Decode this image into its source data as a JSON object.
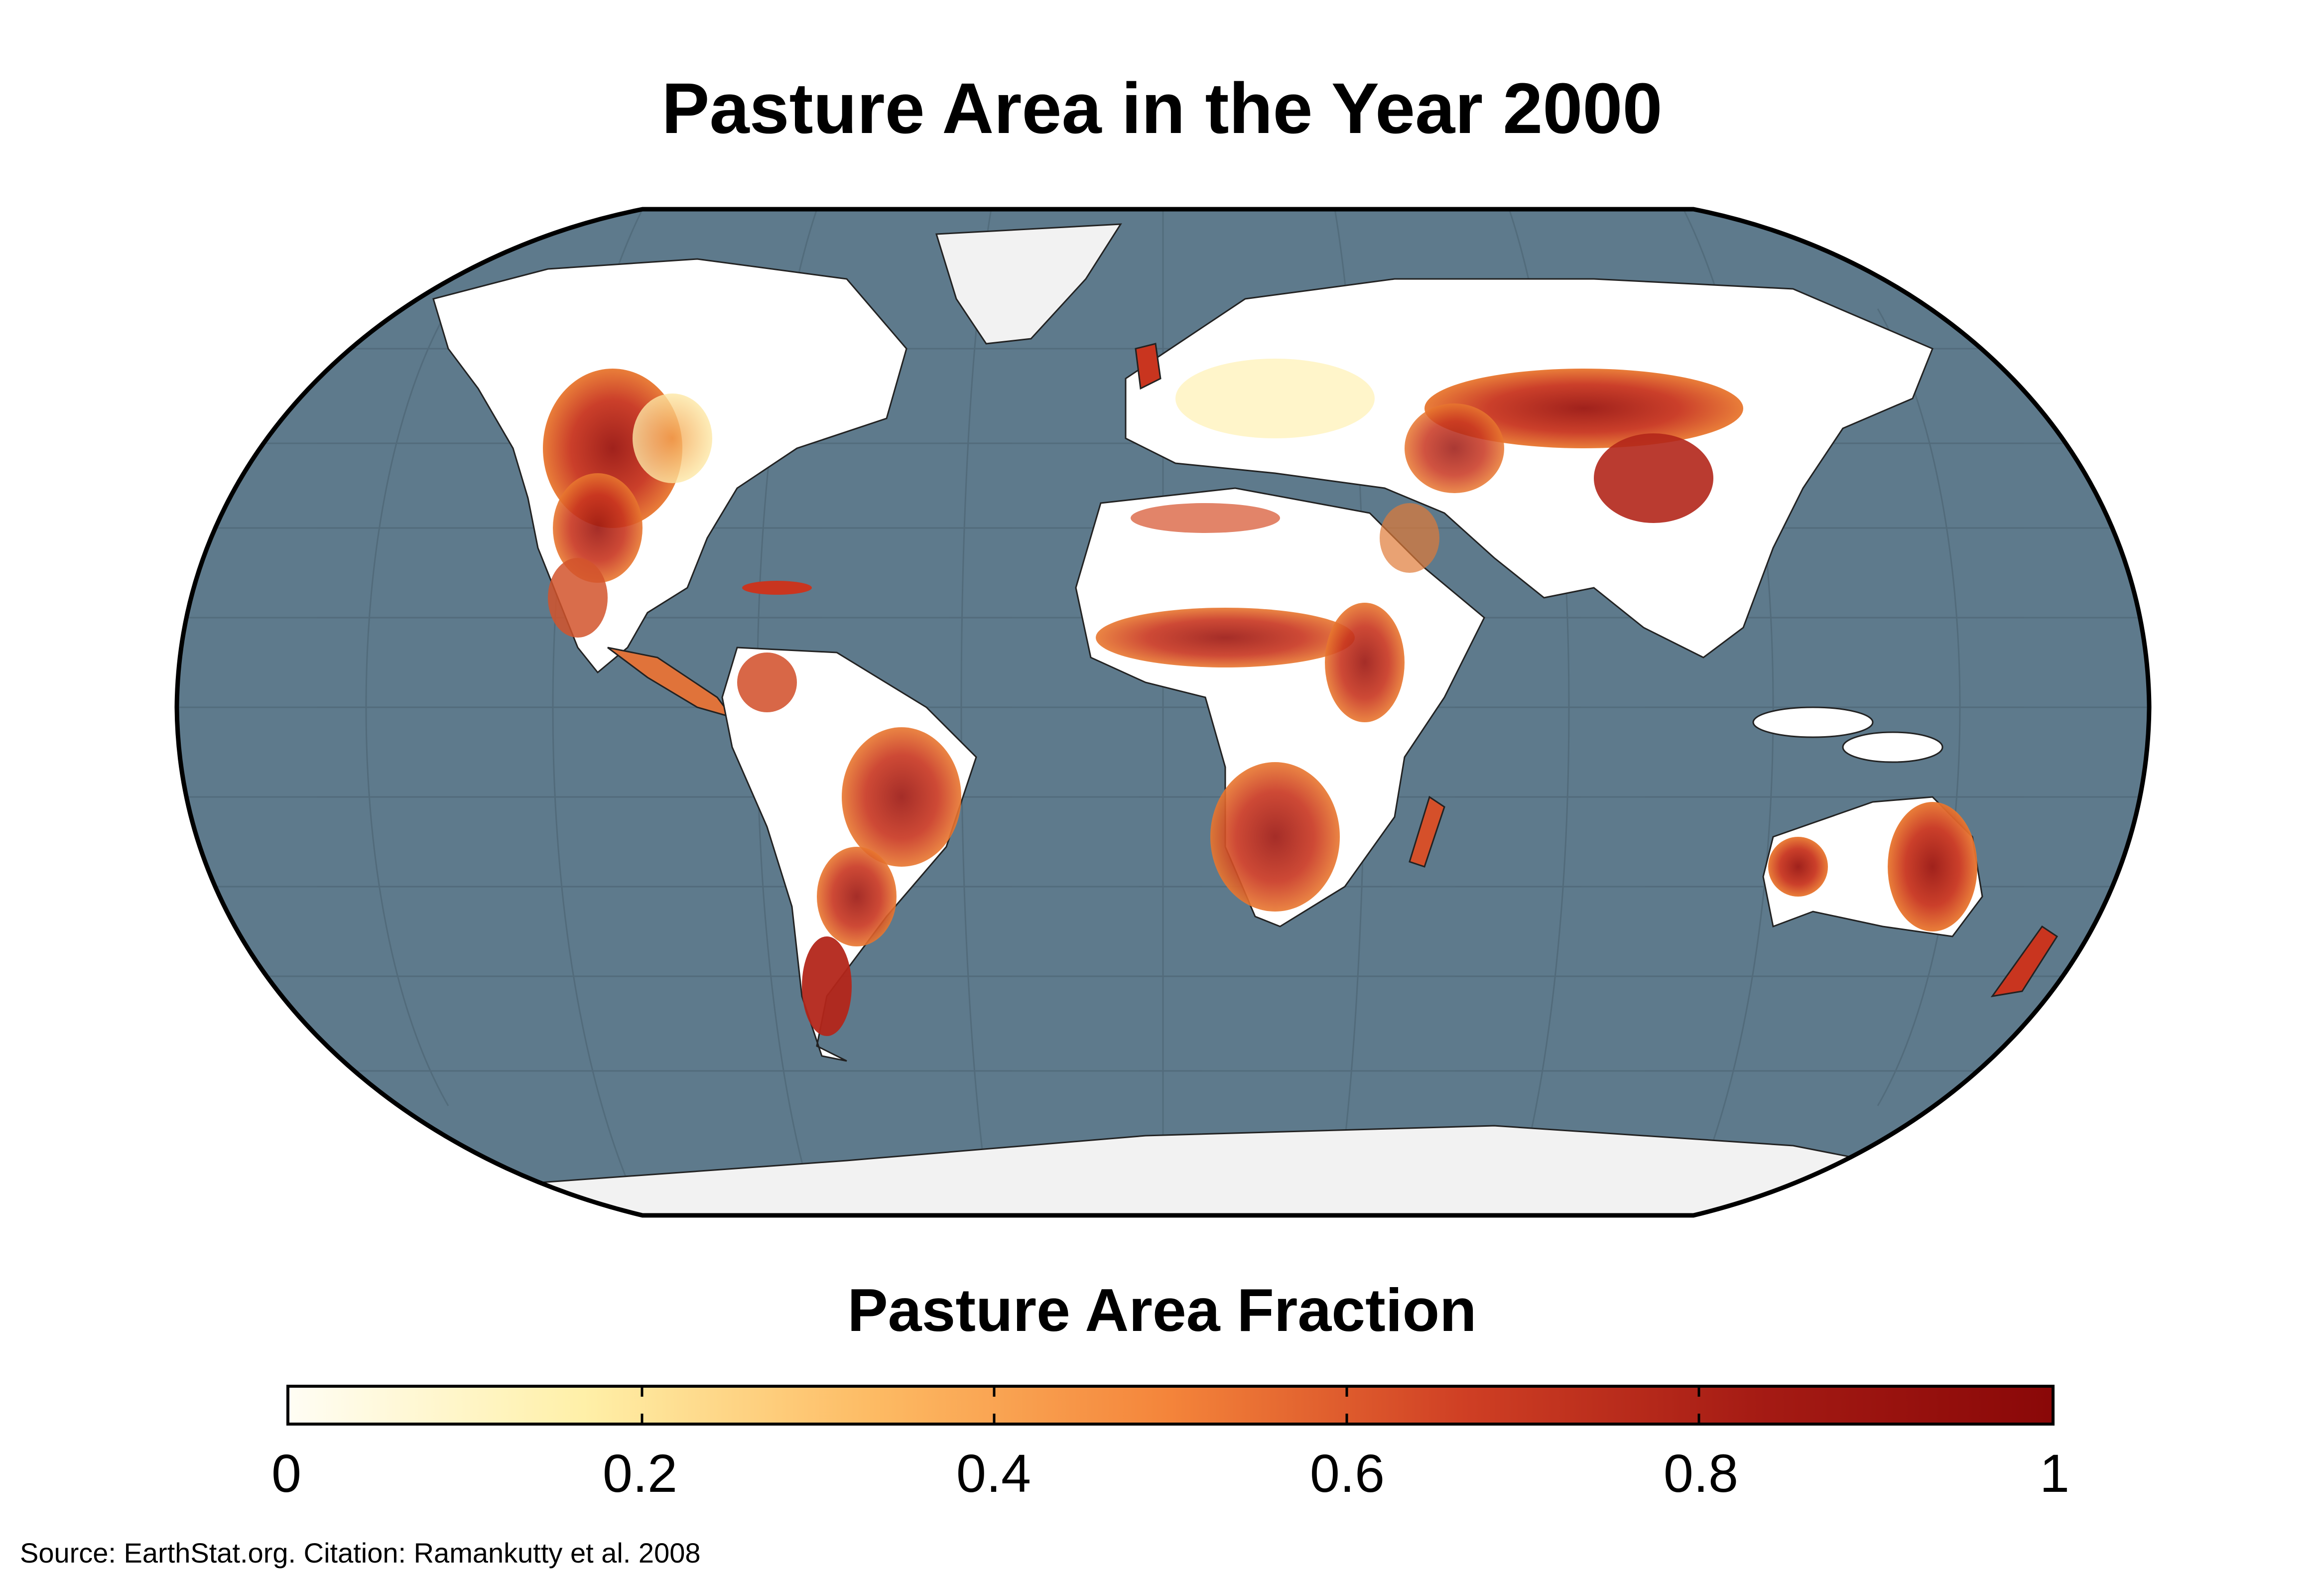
{
  "title": "Pasture Area in the Year 2000",
  "legend": {
    "title": "Pasture Area Fraction",
    "ticks": [
      "0",
      "0.2",
      "0.4",
      "0.6",
      "0.8",
      "1"
    ],
    "min": 0,
    "max": 1,
    "colors": [
      "#fffdf4",
      "#fff0a8",
      "#fdba63",
      "#f4843a",
      "#cf3f24",
      "#a51b14",
      "#8a0808"
    ]
  },
  "source": "Source: EarthStat.org. Citation: Ramankutty et al. 2008",
  "map": {
    "projection": "Robinson",
    "ocean_color": "#5e7a8c",
    "land_color": "#ffffff",
    "ice_color": "#f0f0f0",
    "high_pasture_color": "#b0221a"
  }
}
